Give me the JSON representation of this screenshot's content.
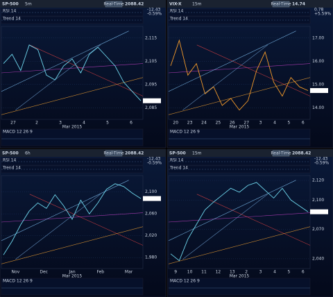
{
  "panels": [
    {
      "title": "SP-500",
      "timeframe": "5m",
      "price": "2088.42",
      "change": "-12.43",
      "pct": "-0.59%",
      "button": "Real-Time",
      "color": "#6fd8ee",
      "indicators": [
        "RSI 14",
        "Trend 14"
      ],
      "lower": "MACD 12 26 9",
      "ylim": [
        2080,
        2120
      ],
      "yticks": [
        {
          "value": 2085,
          "label": "2,085"
        },
        {
          "value": 2095,
          "label": "2,095"
        },
        {
          "value": 2105,
          "label": "2,105"
        },
        {
          "value": 2115,
          "label": "2,115"
        }
      ],
      "xlabels": [
        "27",
        "2",
        "3",
        "4",
        "5",
        "6"
      ],
      "xcaption": "Mar 2015",
      "prices": [
        2104,
        2108,
        2101,
        2112,
        2110,
        2099,
        2097,
        2103,
        2106,
        2100,
        2108,
        2111,
        2107,
        2103,
        2096,
        2092,
        2088
      ]
    },
    {
      "title": "VIX-X",
      "timeframe": "15m",
      "price": "14.74",
      "change": "0.78",
      "pct": "+5.59%",
      "button": "Real-Time",
      "color": "#f39a2a",
      "indicators": [
        "RSI 14",
        "Trend 14"
      ],
      "lower": "MACD 12 26 9",
      "ylim": [
        13.5,
        17.5
      ],
      "yticks": [
        {
          "value": 14,
          "label": "14.00"
        },
        {
          "value": 15,
          "label": "15.00"
        },
        {
          "value": 16,
          "label": "16.00"
        },
        {
          "value": 17,
          "label": "17.00"
        }
      ],
      "xlabels": [
        "20",
        "23",
        "24",
        "25",
        "26",
        "27",
        "3",
        "4",
        "5",
        "6"
      ],
      "xcaption": "Mar 2015",
      "prices": [
        15.8,
        16.9,
        15.4,
        15.9,
        14.6,
        14.9,
        14.1,
        14.4,
        13.9,
        14.3,
        15.6,
        16.4,
        15.1,
        14.5,
        15.3,
        14.9,
        14.74
      ]
    },
    {
      "title": "SP-500",
      "timeframe": "6h",
      "price": "2088.42",
      "change": "-12.43",
      "pct": "-0.59%",
      "button": "Real-Time",
      "color": "#6fd8ee",
      "indicators": [
        "RSI 14",
        "Trend 14"
      ],
      "lower": "MACD 12 26 9",
      "ylim": [
        1960,
        2130
      ],
      "yticks": [
        {
          "value": 1980,
          "label": "1,980"
        },
        {
          "value": 2020,
          "label": "2,020"
        },
        {
          "value": 2060,
          "label": "2,060"
        },
        {
          "value": 2100,
          "label": "2,100"
        }
      ],
      "xlabels": [
        "Nov",
        "Dec",
        "Jan",
        "Feb",
        "Mar"
      ],
      "xcaption": "Mar 2015",
      "prices": [
        1985,
        2010,
        2040,
        2065,
        2080,
        2070,
        2095,
        2075,
        2050,
        2085,
        2060,
        2080,
        2105,
        2115,
        2110,
        2098,
        2088
      ]
    },
    {
      "title": "SP-500",
      "timeframe": "15m",
      "price": "2088.42",
      "change": "-12.43",
      "pct": "-0.59%",
      "button": "Real-Time",
      "color": "#6fd8ee",
      "indicators": [
        "RSI 14",
        "Trend 14"
      ],
      "lower": "MACD 12 26 9",
      "ylim": [
        2030,
        2125
      ],
      "yticks": [
        {
          "value": 2040,
          "label": "2,040"
        },
        {
          "value": 2070,
          "label": "2,070"
        },
        {
          "value": 2100,
          "label": "2,100"
        },
        {
          "value": 2120,
          "label": "2,120"
        }
      ],
      "xlabels": [
        "9",
        "10",
        "11",
        "12",
        "13",
        "2",
        "3",
        "4",
        "5",
        "6"
      ],
      "xcaption": "Mar 2015",
      "prices": [
        2045,
        2038,
        2060,
        2075,
        2090,
        2098,
        2105,
        2112,
        2108,
        2115,
        2118,
        2110,
        2102,
        2112,
        2100,
        2094,
        2088
      ]
    }
  ]
}
